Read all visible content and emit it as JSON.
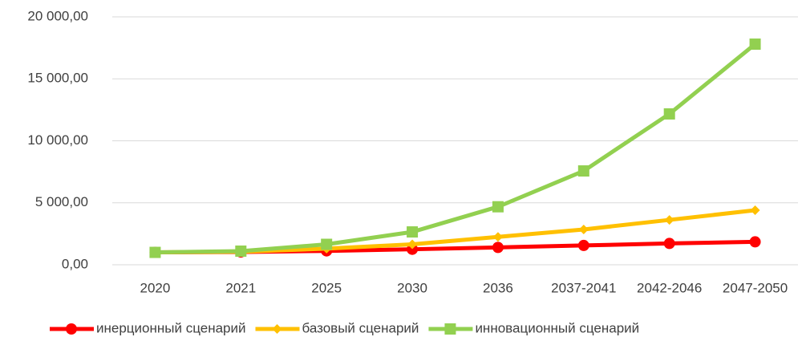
{
  "chart_data": {
    "type": "line",
    "categories": [
      "2020",
      "2021",
      "2025",
      "2030",
      "2036",
      "2037-2041",
      "2042-2046",
      "2047-2050"
    ],
    "series": [
      {
        "name": "инерционный сценарий",
        "color": "#ff0000",
        "marker": "circle",
        "values": [
          1000,
          1030,
          1120,
          1250,
          1400,
          1560,
          1720,
          1850
        ]
      },
      {
        "name": "базовый сценарий",
        "color": "#ffc000",
        "marker": "diamond",
        "values": [
          1000,
          1050,
          1300,
          1650,
          2250,
          2850,
          3620,
          4400
        ]
      },
      {
        "name": "инновационный сценарий",
        "color": "#92d050",
        "marker": "square",
        "values": [
          1000,
          1100,
          1650,
          2650,
          4680,
          7570,
          12170,
          17800
        ]
      }
    ],
    "ylim": [
      0,
      20000
    ],
    "yticks": [
      {
        "value": 0,
        "label": "0,00"
      },
      {
        "value": 5000,
        "label": "5 000,00"
      },
      {
        "value": 10000,
        "label": "10 000,00"
      },
      {
        "value": 15000,
        "label": "15 000,00"
      },
      {
        "value": 20000,
        "label": "20 000,00"
      }
    ],
    "grid": true,
    "legend": "bottom"
  }
}
